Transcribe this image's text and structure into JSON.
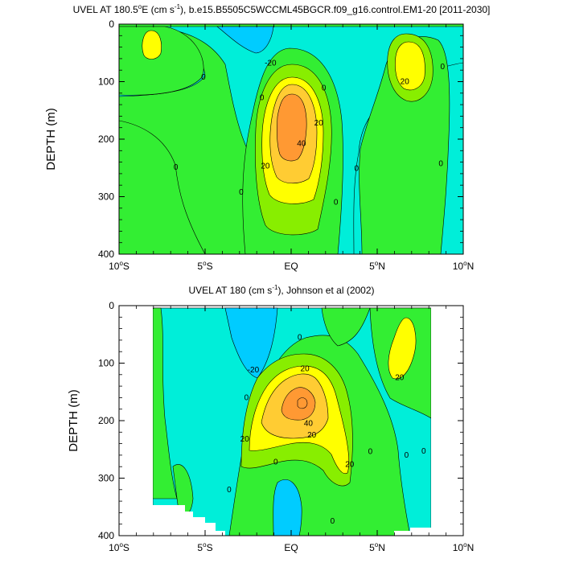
{
  "colors": {
    "lt_m10": "#00ccff",
    "lt_0": "#00eed9",
    "lt_10": "#33ee33",
    "lt_20": "#88ee00",
    "lt_30": "#ffff00",
    "lt_40": "#ffcc33",
    "ge_40": "#ff9933",
    "contour_line": "#000000"
  },
  "chart_data": [
    {
      "type": "contour",
      "title_prefix": "UVEL AT 180.5",
      "title_degree": "o",
      "title_mid": "E (cm s",
      "title_exp": "-1",
      "title_suffix": "), b.e15.B5505C5WCCML45BGCR.f09_g16.control.EM1-20 [2011-2030]",
      "ylabel": "DEPTH (m)",
      "xlim": [
        -10,
        10
      ],
      "ylim": [
        400,
        0
      ],
      "x_ticks": [
        {
          "value": -10,
          "label": "10",
          "deg": "o",
          "hemi": "S"
        },
        {
          "value": -5,
          "label": "5",
          "deg": "o",
          "hemi": "S"
        },
        {
          "value": 0,
          "label": "EQ",
          "deg": "",
          "hemi": ""
        },
        {
          "value": 5,
          "label": "5",
          "deg": "o",
          "hemi": "N"
        },
        {
          "value": 10,
          "label": "10",
          "deg": "o",
          "hemi": "N"
        }
      ],
      "y_ticks": [
        0,
        100,
        200,
        300,
        400
      ],
      "contour_labels": [
        {
          "text": "-20",
          "x": -1.2,
          "y": 68
        },
        {
          "text": "20",
          "x": 1.6,
          "y": 172
        },
        {
          "text": "40",
          "x": 0.6,
          "y": 208
        },
        {
          "text": "20",
          "x": -1.5,
          "y": 247
        },
        {
          "text": "20",
          "x": 6.6,
          "y": 100
        },
        {
          "text": "0",
          "x": -5.1,
          "y": 92
        },
        {
          "text": "0",
          "x": -1.7,
          "y": 128
        },
        {
          "text": "0",
          "x": 1.9,
          "y": 111
        },
        {
          "text": "0",
          "x": 8.8,
          "y": 74
        },
        {
          "text": "0",
          "x": -6.7,
          "y": 249
        },
        {
          "text": "0",
          "x": -2.9,
          "y": 292
        },
        {
          "text": "0",
          "x": 2.6,
          "y": 310
        },
        {
          "text": "0",
          "x": 3.8,
          "y": 251
        },
        {
          "text": "0",
          "x": 8.7,
          "y": 243
        }
      ]
    },
    {
      "type": "contour",
      "title_prefix": "UVEL AT 180 (cm s",
      "title_exp": "-1",
      "title_suffix": "), Johnson et al (2002)",
      "ylabel": "DEPTH (m)",
      "xlim": [
        -10,
        10
      ],
      "ylim": [
        400,
        0
      ],
      "x_ticks": [
        {
          "value": -10,
          "label": "10",
          "deg": "o",
          "hemi": "S"
        },
        {
          "value": -5,
          "label": "5",
          "deg": "o",
          "hemi": "S"
        },
        {
          "value": 0,
          "label": "EQ",
          "deg": "",
          "hemi": ""
        },
        {
          "value": 5,
          "label": "5",
          "deg": "o",
          "hemi": "N"
        },
        {
          "value": 10,
          "label": "10",
          "deg": "o",
          "hemi": "N"
        }
      ],
      "y_ticks": [
        0,
        100,
        200,
        300,
        400
      ],
      "data_extent": [
        -8,
        8
      ],
      "contour_labels": [
        {
          "text": "-20",
          "x": -2.2,
          "y": 112
        },
        {
          "text": "20",
          "x": 0.8,
          "y": 110
        },
        {
          "text": "20",
          "x": -2.7,
          "y": 232
        },
        {
          "text": "40",
          "x": 1.0,
          "y": 205
        },
        {
          "text": "20",
          "x": 1.2,
          "y": 225
        },
        {
          "text": "20",
          "x": 3.4,
          "y": 276
        },
        {
          "text": "20",
          "x": 6.3,
          "y": 125
        },
        {
          "text": "0",
          "x": 0.5,
          "y": 55
        },
        {
          "text": "0",
          "x": -2.6,
          "y": 160
        },
        {
          "text": "0",
          "x": -0.9,
          "y": 272
        },
        {
          "text": "0",
          "x": -3.6,
          "y": 320
        },
        {
          "text": "0",
          "x": 4.6,
          "y": 254
        },
        {
          "text": "0",
          "x": 7.7,
          "y": 253
        },
        {
          "text": "0",
          "x": 6.7,
          "y": 260
        },
        {
          "text": "0",
          "x": 2.4,
          "y": 375
        }
      ]
    }
  ]
}
